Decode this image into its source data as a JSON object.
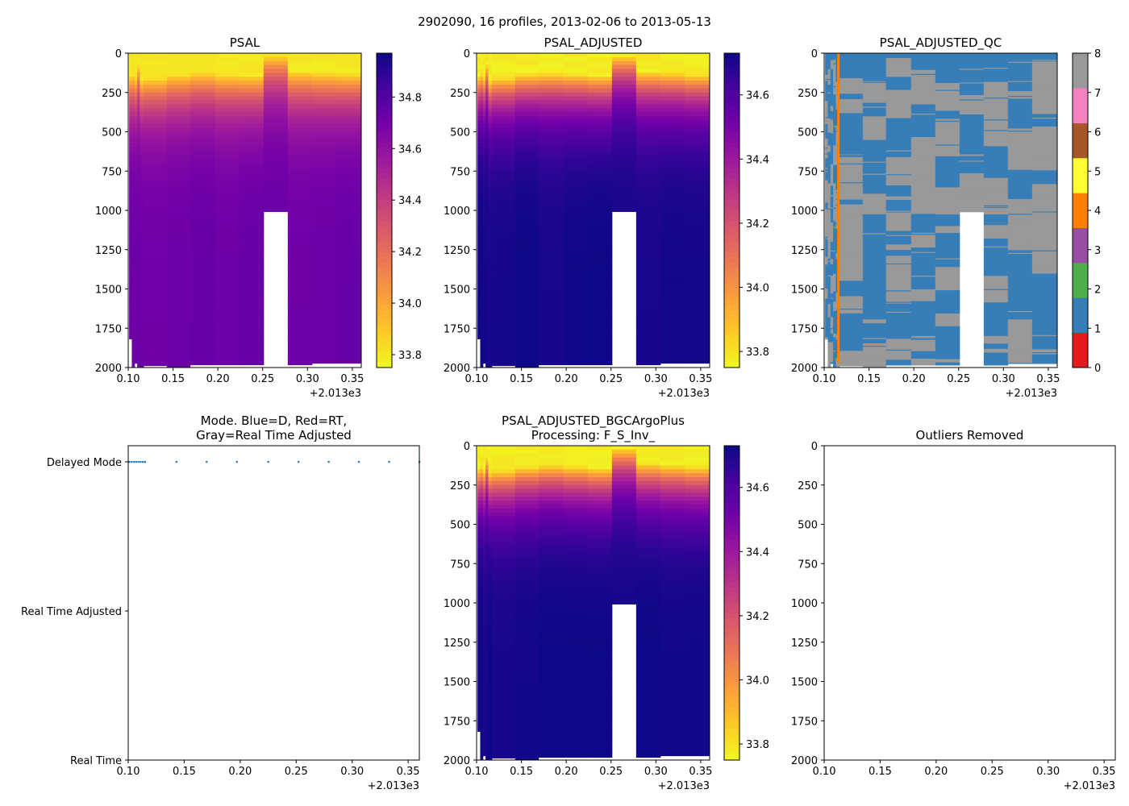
{
  "suptitle": "2902090, 16 profiles, 2013-02-06 to 2013-05-13",
  "offset_label": "+2.013e3",
  "colors": {
    "plasma": [
      "#0d0887",
      "#46039f",
      "#7201a8",
      "#9c179e",
      "#bd3786",
      "#d8576b",
      "#ed7953",
      "#fb9f3a",
      "#fdca26",
      "#f0f921"
    ],
    "qc": [
      "#e41a1c",
      "#377eb8",
      "#4daf4a",
      "#984ea3",
      "#ff7f00",
      "#ffff33",
      "#a65628",
      "#f781bf",
      "#999999"
    ],
    "mode_point": "#1f77b4"
  },
  "chart_data": [
    {
      "id": "psal",
      "type": "heatmap",
      "title": "PSAL",
      "xlim": [
        2013.1,
        2013.36
      ],
      "xticks": [
        "0.10",
        "0.15",
        "0.20",
        "0.25",
        "0.30",
        "0.35"
      ],
      "ylim": [
        2000,
        0
      ],
      "yticks": [
        "0",
        "250",
        "500",
        "750",
        "1000",
        "1250",
        "1500",
        "1750",
        "2000"
      ],
      "profile_times": [
        2013.101,
        2013.104,
        2013.107,
        2013.11,
        2013.113,
        2013.117,
        2013.143,
        2013.169,
        2013.197,
        2013.224,
        2013.251,
        2013.278,
        2013.305,
        2013.332,
        2013.36
      ],
      "profile_max_depth": [
        1820,
        2000,
        1975,
        2000,
        2000,
        1990,
        2000,
        1985,
        1985,
        1985,
        1010,
        1985,
        1975,
        1975
      ],
      "deep_value": 34.72,
      "surface_value": 33.8,
      "mixed_layer_depth": [
        130,
        120,
        140,
        60,
        160,
        140,
        120,
        110,
        120,
        130,
        0,
        100,
        110,
        120
      ],
      "colorbar": {
        "min": 33.75,
        "max": 34.97,
        "ticks": [
          "33.8",
          "34.0",
          "34.2",
          "34.4",
          "34.6",
          "34.8"
        ],
        "tick_values": [
          33.8,
          34.0,
          34.2,
          34.4,
          34.6,
          34.8
        ]
      }
    },
    {
      "id": "psal_adj",
      "type": "heatmap",
      "title": "PSAL_ADJUSTED",
      "xlim": [
        2013.1,
        2013.36
      ],
      "xticks": [
        "0.10",
        "0.15",
        "0.20",
        "0.25",
        "0.30",
        "0.35"
      ],
      "ylim": [
        2000,
        0
      ],
      "yticks": [
        "0",
        "250",
        "500",
        "750",
        "1000",
        "1250",
        "1500",
        "1750",
        "2000"
      ],
      "profile_times": [
        2013.101,
        2013.104,
        2013.107,
        2013.11,
        2013.113,
        2013.117,
        2013.143,
        2013.169,
        2013.197,
        2013.224,
        2013.251,
        2013.278,
        2013.305,
        2013.332,
        2013.36
      ],
      "profile_max_depth": [
        1820,
        2000,
        1975,
        2000,
        2000,
        1990,
        2000,
        1985,
        1985,
        1985,
        1010,
        1985,
        1975,
        1975
      ],
      "deep_value": 34.72,
      "surface_value": 33.78,
      "mixed_layer_depth": [
        130,
        120,
        140,
        60,
        160,
        140,
        120,
        110,
        120,
        130,
        0,
        100,
        110,
        120
      ],
      "colorbar": {
        "min": 33.75,
        "max": 34.73,
        "ticks": [
          "33.8",
          "34.0",
          "34.2",
          "34.4",
          "34.6"
        ],
        "tick_values": [
          33.8,
          34.0,
          34.2,
          34.4,
          34.6
        ]
      }
    },
    {
      "id": "psal_qc",
      "type": "heatmap",
      "title": "PSAL_ADJUSTED_QC",
      "xlim": [
        2013.1,
        2013.36
      ],
      "xticks": [
        "0.10",
        "0.15",
        "0.20",
        "0.25",
        "0.30",
        "0.35"
      ],
      "ylim": [
        2000,
        0
      ],
      "yticks": [
        "0",
        "250",
        "500",
        "750",
        "1000",
        "1250",
        "1500",
        "1750",
        "2000"
      ],
      "profile_times": [
        2013.101,
        2013.104,
        2013.107,
        2013.11,
        2013.113,
        2013.117,
        2013.143,
        2013.169,
        2013.197,
        2013.224,
        2013.251,
        2013.278,
        2013.305,
        2013.332,
        2013.36
      ],
      "profile_max_depth": [
        1820,
        2000,
        1975,
        2000,
        2000,
        1990,
        2000,
        1985,
        1985,
        1985,
        1010,
        1985,
        1975,
        1975
      ],
      "qc_flags_present": [
        1,
        4,
        8
      ],
      "colorbar": {
        "min": 0,
        "max": 8,
        "ticks": [
          "0",
          "1",
          "2",
          "3",
          "4",
          "5",
          "6",
          "7",
          "8"
        ],
        "tick_values": [
          0,
          1,
          2,
          3,
          4,
          5,
          6,
          7,
          8
        ]
      }
    },
    {
      "id": "mode",
      "type": "scatter",
      "title_lines": [
        "Mode. Blue=D, Red=RT,",
        "Gray=Real Time Adjusted"
      ],
      "xlim": [
        2013.1,
        2013.36
      ],
      "xticks": [
        "0.10",
        "0.15",
        "0.20",
        "0.25",
        "0.30",
        "0.35"
      ],
      "ycategories": [
        "Real Time",
        "Real Time Adjusted",
        "Delayed Mode"
      ],
      "points": [
        {
          "x": 2013.101,
          "mode": "Delayed Mode"
        },
        {
          "x": 2013.103,
          "mode": "Delayed Mode"
        },
        {
          "x": 2013.105,
          "mode": "Delayed Mode"
        },
        {
          "x": 2013.107,
          "mode": "Delayed Mode"
        },
        {
          "x": 2013.109,
          "mode": "Delayed Mode"
        },
        {
          "x": 2013.111,
          "mode": "Delayed Mode"
        },
        {
          "x": 2013.113,
          "mode": "Delayed Mode"
        },
        {
          "x": 2013.115,
          "mode": "Delayed Mode"
        },
        {
          "x": 2013.143,
          "mode": "Delayed Mode"
        },
        {
          "x": 2013.17,
          "mode": "Delayed Mode"
        },
        {
          "x": 2013.197,
          "mode": "Delayed Mode"
        },
        {
          "x": 2013.225,
          "mode": "Delayed Mode"
        },
        {
          "x": 2013.252,
          "mode": "Delayed Mode"
        },
        {
          "x": 2013.279,
          "mode": "Delayed Mode"
        },
        {
          "x": 2013.306,
          "mode": "Delayed Mode"
        },
        {
          "x": 2013.333,
          "mode": "Delayed Mode"
        },
        {
          "x": 2013.36,
          "mode": "Delayed Mode"
        }
      ]
    },
    {
      "id": "psal_bgc",
      "type": "heatmap",
      "title_lines": [
        "PSAL_ADJUSTED_BGCArgoPlus",
        "Processing: F_S_Inv_"
      ],
      "xlim": [
        2013.1,
        2013.36
      ],
      "xticks": [
        "0.10",
        "0.15",
        "0.20",
        "0.25",
        "0.30",
        "0.35"
      ],
      "ylim": [
        2000,
        0
      ],
      "yticks": [
        "0",
        "250",
        "500",
        "750",
        "1000",
        "1250",
        "1500",
        "1750",
        "2000"
      ],
      "profile_times": [
        2013.101,
        2013.104,
        2013.107,
        2013.11,
        2013.113,
        2013.117,
        2013.143,
        2013.169,
        2013.197,
        2013.224,
        2013.251,
        2013.278,
        2013.305,
        2013.332,
        2013.36
      ],
      "profile_max_depth": [
        1820,
        2000,
        1975,
        2000,
        2000,
        1990,
        2000,
        1985,
        1985,
        1985,
        1010,
        1985,
        1975,
        1975
      ],
      "deep_value": 34.72,
      "surface_value": 33.78,
      "mixed_layer_depth": [
        130,
        120,
        140,
        60,
        160,
        140,
        120,
        110,
        120,
        130,
        0,
        100,
        110,
        120
      ],
      "colorbar": {
        "min": 33.75,
        "max": 34.73,
        "ticks": [
          "33.8",
          "34.0",
          "34.2",
          "34.4",
          "34.6"
        ],
        "tick_values": [
          33.8,
          34.0,
          34.2,
          34.4,
          34.6
        ]
      }
    },
    {
      "id": "outliers",
      "type": "scatter",
      "title": "Outliers Removed",
      "xlim": [
        2013.1,
        2013.36
      ],
      "xticks": [
        "0.10",
        "0.15",
        "0.20",
        "0.25",
        "0.30",
        "0.35"
      ],
      "ylim": [
        2000,
        0
      ],
      "yticks": [
        "0",
        "250",
        "500",
        "750",
        "1000",
        "1250",
        "1500",
        "1750",
        "2000"
      ],
      "points": []
    }
  ]
}
